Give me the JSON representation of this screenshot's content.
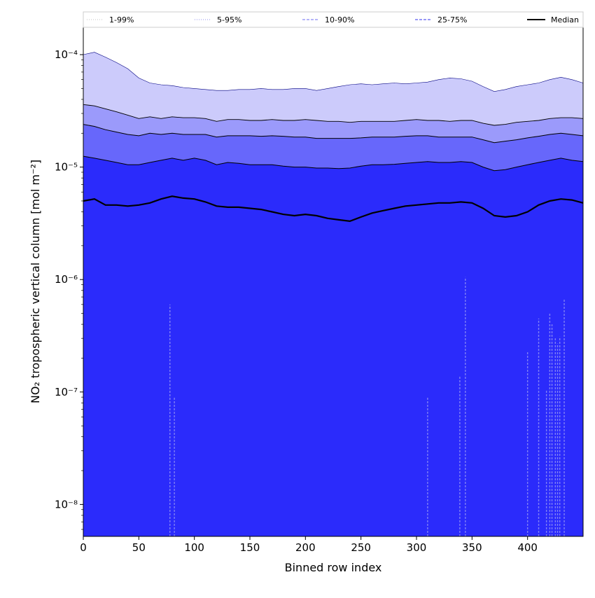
{
  "chart_data": {
    "type": "area",
    "title": "",
    "xlabel": "Binned row index",
    "ylabel": "NO₂ tropospheric vertical column [mol m⁻²]",
    "xlim": [
      0,
      450
    ],
    "ylim": [
      5.2e-09,
      0.000175
    ],
    "yscale": "log",
    "x_ticks": [
      0,
      50,
      100,
      150,
      200,
      250,
      300,
      350,
      400
    ],
    "y_ticks": [
      {
        "value": 1e-08,
        "label": "10⁻⁸"
      },
      {
        "value": 1e-07,
        "label": "10⁻⁷"
      },
      {
        "value": 1e-06,
        "label": "10⁻⁶"
      },
      {
        "value": 1e-05,
        "label": "10⁻⁵"
      },
      {
        "value": 0.0001,
        "label": "10⁻⁴"
      }
    ],
    "grid": false,
    "legend_position": "top",
    "legend": [
      {
        "label": "1-99%",
        "color": "#cfcfcf",
        "style": "dotted"
      },
      {
        "label": "5-95%",
        "color": "#a8a8f0",
        "style": "dotted"
      },
      {
        "label": "10-90%",
        "color": "#8a8af5",
        "style": "dashed"
      },
      {
        "label": "25-75%",
        "color": "#5a5af0",
        "style": "dashed"
      },
      {
        "label": "Median",
        "color": "#000000",
        "style": "solid"
      }
    ],
    "x": [
      0,
      10,
      20,
      30,
      40,
      50,
      60,
      70,
      80,
      90,
      100,
      110,
      120,
      130,
      140,
      150,
      160,
      170,
      180,
      190,
      200,
      210,
      220,
      230,
      240,
      250,
      260,
      270,
      280,
      290,
      300,
      310,
      320,
      330,
      340,
      350,
      360,
      370,
      380,
      390,
      400,
      410,
      420,
      430,
      440,
      450
    ],
    "series": [
      {
        "name": "p99",
        "values": [
          0.0001,
          0.000105,
          9.5e-05,
          8.5e-05,
          7.5e-05,
          6.2e-05,
          5.6e-05,
          5.4e-05,
          5.3e-05,
          5.1e-05,
          5e-05,
          4.9e-05,
          4.8e-05,
          4.8e-05,
          4.9e-05,
          4.9e-05,
          5e-05,
          4.9e-05,
          4.9e-05,
          5e-05,
          5e-05,
          4.8e-05,
          5e-05,
          5.2e-05,
          5.4e-05,
          5.5e-05,
          5.4e-05,
          5.5e-05,
          5.6e-05,
          5.5e-05,
          5.6e-05,
          5.7e-05,
          6e-05,
          6.2e-05,
          6.1e-05,
          5.8e-05,
          5.2e-05,
          4.7e-05,
          4.9e-05,
          5.2e-05,
          5.4e-05,
          5.6e-05,
          6e-05,
          6.3e-05,
          6e-05,
          5.6e-05
        ]
      },
      {
        "name": "p95",
        "values": [
          3.6e-05,
          3.5e-05,
          3.3e-05,
          3.1e-05,
          2.9e-05,
          2.7e-05,
          2.8e-05,
          2.7e-05,
          2.8e-05,
          2.75e-05,
          2.75e-05,
          2.7e-05,
          2.55e-05,
          2.65e-05,
          2.65e-05,
          2.6e-05,
          2.6e-05,
          2.65e-05,
          2.6e-05,
          2.6e-05,
          2.65e-05,
          2.6e-05,
          2.55e-05,
          2.55e-05,
          2.5e-05,
          2.55e-05,
          2.55e-05,
          2.55e-05,
          2.55e-05,
          2.6e-05,
          2.65e-05,
          2.6e-05,
          2.6e-05,
          2.55e-05,
          2.6e-05,
          2.6e-05,
          2.45e-05,
          2.35e-05,
          2.4e-05,
          2.5e-05,
          2.55e-05,
          2.6e-05,
          2.7e-05,
          2.75e-05,
          2.75e-05,
          2.7e-05
        ]
      },
      {
        "name": "p90",
        "values": [
          2.4e-05,
          2.3e-05,
          2.15e-05,
          2.05e-05,
          1.95e-05,
          1.9e-05,
          2e-05,
          1.95e-05,
          2e-05,
          1.95e-05,
          1.95e-05,
          1.95e-05,
          1.85e-05,
          1.9e-05,
          1.9e-05,
          1.9e-05,
          1.88e-05,
          1.9e-05,
          1.88e-05,
          1.85e-05,
          1.85e-05,
          1.8e-05,
          1.8e-05,
          1.8e-05,
          1.8e-05,
          1.82e-05,
          1.85e-05,
          1.85e-05,
          1.85e-05,
          1.88e-05,
          1.9e-05,
          1.9e-05,
          1.85e-05,
          1.85e-05,
          1.85e-05,
          1.85e-05,
          1.75e-05,
          1.65e-05,
          1.7e-05,
          1.75e-05,
          1.82e-05,
          1.88e-05,
          1.95e-05,
          2e-05,
          1.95e-05,
          1.9e-05
        ]
      },
      {
        "name": "p75",
        "values": [
          1.25e-05,
          1.2e-05,
          1.15e-05,
          1.1e-05,
          1.05e-05,
          1.05e-05,
          1.1e-05,
          1.15e-05,
          1.2e-05,
          1.15e-05,
          1.2e-05,
          1.15e-05,
          1.05e-05,
          1.1e-05,
          1.08e-05,
          1.05e-05,
          1.05e-05,
          1.05e-05,
          1.02e-05,
          1e-05,
          1e-05,
          9.8e-06,
          9.8e-06,
          9.7e-06,
          9.8e-06,
          1.02e-05,
          1.05e-05,
          1.05e-05,
          1.06e-05,
          1.08e-05,
          1.1e-05,
          1.12e-05,
          1.1e-05,
          1.1e-05,
          1.12e-05,
          1.1e-05,
          1e-05,
          9.3e-06,
          9.5e-06,
          1e-05,
          1.05e-05,
          1.1e-05,
          1.15e-05,
          1.2e-05,
          1.15e-05,
          1.12e-05
        ]
      },
      {
        "name": "Median",
        "values": [
          5e-06,
          5.2e-06,
          4.6e-06,
          4.6e-06,
          4.5e-06,
          4.6e-06,
          4.8e-06,
          5.2e-06,
          5.5e-06,
          5.3e-06,
          5.2e-06,
          4.9e-06,
          4.5e-06,
          4.4e-06,
          4.4e-06,
          4.3e-06,
          4.2e-06,
          4e-06,
          3.8e-06,
          3.7e-06,
          3.8e-06,
          3.7e-06,
          3.5e-06,
          3.4e-06,
          3.3e-06,
          3.6e-06,
          3.9e-06,
          4.1e-06,
          4.3e-06,
          4.5e-06,
          4.6e-06,
          4.7e-06,
          4.8e-06,
          4.8e-06,
          4.9e-06,
          4.8e-06,
          4.3e-06,
          3.7e-06,
          3.6e-06,
          3.7e-06,
          4e-06,
          4.6e-06,
          5e-06,
          5.2e-06,
          5.1e-06,
          4.8e-06
        ]
      },
      {
        "name": "p25",
        "values": [
          5.2e-09,
          5.2e-09,
          5.2e-09,
          5.2e-09,
          5.2e-09,
          5.2e-09,
          5.2e-09,
          5.2e-09,
          5.2e-09,
          5.2e-09,
          5.2e-09,
          5.2e-09,
          5.2e-09,
          5.2e-09,
          5.2e-09,
          5.2e-09,
          5.2e-09,
          5.2e-09,
          5.2e-09,
          5.2e-09,
          5.2e-09,
          5.2e-09,
          5.2e-09,
          5.2e-09,
          5.2e-09,
          5.2e-09,
          5.2e-09,
          5.2e-09,
          5.2e-09,
          5.2e-09,
          5.2e-09,
          5.2e-09,
          5.2e-09,
          5.2e-09,
          5.2e-09,
          5.2e-09,
          5.2e-09,
          5.2e-09,
          5.2e-09,
          5.2e-09,
          5.2e-09,
          5.2e-09,
          5.2e-09,
          5.2e-09,
          5.2e-09,
          5.2e-09
        ]
      }
    ],
    "spikes": [
      {
        "x": 78,
        "value": 6e-07
      },
      {
        "x": 82,
        "value": 9e-08
      },
      {
        "x": 310,
        "value": 9e-08
      },
      {
        "x": 339,
        "value": 1.4e-07
      },
      {
        "x": 344,
        "value": 1.05e-06
      },
      {
        "x": 400,
        "value": 2.3e-07
      },
      {
        "x": 410,
        "value": 4.5e-07
      },
      {
        "x": 417,
        "value": 1.05e-07
      },
      {
        "x": 420,
        "value": 5e-07
      },
      {
        "x": 422,
        "value": 4e-07
      },
      {
        "x": 425,
        "value": 3e-07
      },
      {
        "x": 427,
        "value": 2.7e-07
      },
      {
        "x": 429,
        "value": 3.1e-07
      },
      {
        "x": 433,
        "value": 6.8e-07
      }
    ],
    "colors": {
      "band_1_99": "#cccbfb",
      "band_5_95": "#9b9afb",
      "band_10_90": "#6767fb",
      "band_inner": "#2b2bfb",
      "median": "#000000",
      "spike": "#7f7ff5"
    }
  }
}
